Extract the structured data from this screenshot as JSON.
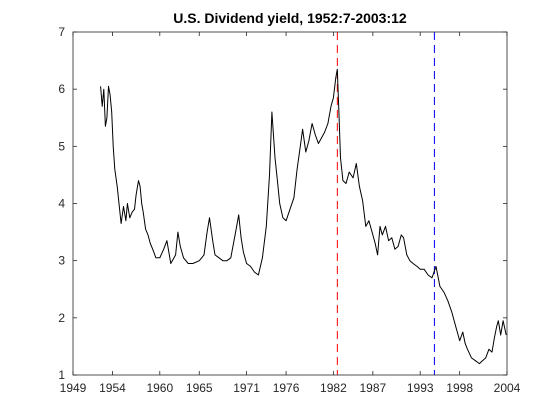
{
  "chart_data": {
    "type": "line",
    "title": "U.S. Dividend yield, 1952:7-2003:12",
    "xlabel": "",
    "ylabel": "",
    "xlim": [
      1949,
      2004
    ],
    "ylim": [
      1,
      7
    ],
    "x_ticks": [
      1949,
      1954,
      1960,
      1965,
      1971,
      1976,
      1982,
      1987,
      1993,
      1998,
      2004
    ],
    "x_tick_labels": [
      "1949",
      "1954",
      "1960",
      "1965",
      "1971",
      "1976",
      "1982",
      "1987",
      "1993",
      "1998",
      "2004"
    ],
    "y_ticks": [
      1,
      2,
      3,
      4,
      5,
      6,
      7
    ],
    "y_tick_labels": [
      "1",
      "2",
      "3",
      "4",
      "5",
      "6",
      "7"
    ],
    "grid": false,
    "legend": "none",
    "series": [
      {
        "color": "#000000",
        "x": [
          1952.5,
          1952.7,
          1952.9,
          1953.1,
          1953.3,
          1953.5,
          1953.7,
          1953.9,
          1954.1,
          1954.3,
          1954.6,
          1954.9,
          1955.1,
          1955.4,
          1955.7,
          1955.9,
          1956.2,
          1956.5,
          1956.8,
          1957.0,
          1957.3,
          1957.5,
          1957.7,
          1957.9,
          1958.2,
          1958.5,
          1958.8,
          1959.1,
          1959.5,
          1960.0,
          1960.5,
          1960.9,
          1961.4,
          1962.0,
          1962.3,
          1962.6,
          1963.0,
          1963.6,
          1964.2,
          1965.0,
          1965.6,
          1966.0,
          1966.3,
          1966.7,
          1967.0,
          1967.5,
          1968.0,
          1968.5,
          1969.0,
          1969.6,
          1970.0,
          1970.3,
          1970.6,
          1971.0,
          1971.5,
          1972.0,
          1972.5,
          1973.0,
          1973.5,
          1973.9,
          1974.2,
          1974.6,
          1974.9,
          1975.2,
          1975.6,
          1976.0,
          1976.5,
          1977.0,
          1977.4,
          1977.8,
          1978.1,
          1978.5,
          1978.9,
          1979.3,
          1979.7,
          1980.1,
          1980.5,
          1980.9,
          1981.3,
          1981.7,
          1982.0,
          1982.3,
          1982.5,
          1982.7,
          1982.9,
          1983.2,
          1983.6,
          1984.0,
          1984.5,
          1984.9,
          1985.3,
          1985.7,
          1986.1,
          1986.5,
          1986.9,
          1987.3,
          1987.6,
          1987.9,
          1988.2,
          1988.6,
          1989.0,
          1989.4,
          1989.8,
          1990.2,
          1990.6,
          1990.9,
          1991.3,
          1991.7,
          1992.1,
          1992.6,
          1993.0,
          1993.5,
          1994.0,
          1994.5,
          1995.0,
          1995.5,
          1996.0,
          1996.5,
          1997.0,
          1997.5,
          1998.0,
          1998.4,
          1998.7,
          1999.0,
          1999.5,
          2000.0,
          2000.5,
          2000.9,
          2001.3,
          2001.7,
          2002.1,
          2002.4,
          2002.7,
          2002.9,
          2003.2,
          2003.5,
          2003.9
        ],
        "y": [
          6.05,
          5.7,
          6.0,
          5.35,
          5.5,
          6.05,
          5.9,
          5.6,
          5.0,
          4.6,
          4.3,
          3.9,
          3.65,
          3.95,
          3.7,
          4.0,
          3.75,
          3.85,
          3.9,
          4.15,
          4.4,
          4.3,
          4.0,
          3.85,
          3.55,
          3.45,
          3.3,
          3.2,
          3.05,
          3.05,
          3.2,
          3.35,
          2.95,
          3.1,
          3.5,
          3.25,
          3.05,
          2.95,
          2.95,
          3.0,
          3.1,
          3.5,
          3.75,
          3.35,
          3.1,
          3.05,
          3.0,
          3.0,
          3.05,
          3.5,
          3.8,
          3.4,
          3.15,
          2.95,
          2.9,
          2.8,
          2.75,
          3.05,
          3.6,
          4.5,
          5.6,
          4.8,
          4.4,
          4.0,
          3.75,
          3.7,
          3.9,
          4.1,
          4.6,
          5.0,
          5.3,
          4.9,
          5.1,
          5.4,
          5.2,
          5.05,
          5.15,
          5.25,
          5.4,
          5.7,
          5.85,
          6.2,
          6.35,
          5.6,
          4.8,
          4.4,
          4.35,
          4.55,
          4.45,
          4.7,
          4.3,
          4.05,
          3.6,
          3.7,
          3.5,
          3.3,
          3.1,
          3.6,
          3.45,
          3.6,
          3.35,
          3.4,
          3.2,
          3.25,
          3.45,
          3.4,
          3.1,
          3.0,
          2.95,
          2.9,
          2.85,
          2.85,
          2.75,
          2.7,
          2.9,
          2.55,
          2.45,
          2.3,
          2.1,
          1.85,
          1.6,
          1.75,
          1.55,
          1.45,
          1.3,
          1.25,
          1.2,
          1.25,
          1.3,
          1.45,
          1.4,
          1.65,
          1.85,
          1.95,
          1.7,
          1.95,
          1.7
        ]
      }
    ],
    "vertical_lines": [
      {
        "x": 1982.5,
        "color": "#ff0000",
        "style": "dashed"
      },
      {
        "x": 1994.8,
        "color": "#0000ff",
        "style": "dashed"
      }
    ]
  }
}
